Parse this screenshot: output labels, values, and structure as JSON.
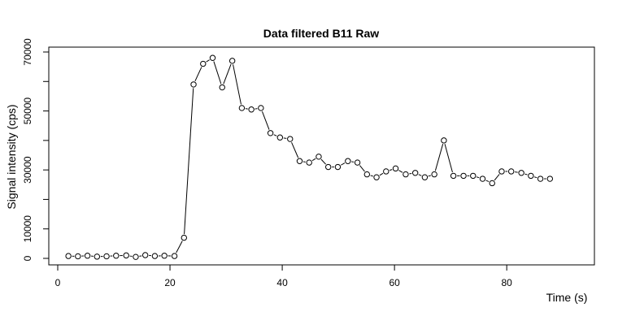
{
  "chart_data": {
    "type": "line",
    "title": "Data filtered B11 Raw",
    "xlabel": "Time (s)",
    "ylabel": "Signal intensity (cps)",
    "xlim": [
      0,
      92
    ],
    "ylim": [
      0,
      72000
    ],
    "x_ticks": [
      0,
      20,
      40,
      60,
      80
    ],
    "y_ticks": [
      0,
      10000,
      30000,
      50000,
      70000
    ],
    "y_minor_ticks": [
      20000,
      40000,
      60000
    ],
    "grid": false,
    "legend": "none",
    "series": [
      {
        "x": [
          1.9,
          3.6,
          5.3,
          7.0,
          8.7,
          10.4,
          12.2,
          13.9,
          15.6,
          17.3,
          19.0,
          20.8,
          22.5,
          24.2,
          25.9,
          27.6,
          29.3,
          31.1,
          32.8,
          34.5,
          36.2,
          37.9,
          39.6,
          41.4,
          43.1,
          44.8,
          46.5,
          48.2,
          49.9,
          51.7,
          53.4,
          55.1,
          56.8,
          58.5,
          60.2,
          62.0,
          63.7,
          65.4,
          67.1,
          68.8,
          70.5,
          72.3,
          74.0,
          75.7,
          77.4,
          79.1,
          80.8,
          82.6,
          84.3,
          86.0,
          87.7
        ],
        "values": [
          800,
          700,
          900,
          600,
          700,
          900,
          1000,
          500,
          1100,
          800,
          900,
          800,
          7000,
          59000,
          66000,
          68000,
          58000,
          67000,
          51000,
          50500,
          51000,
          42500,
          41000,
          40500,
          33000,
          32500,
          34500,
          31000,
          31000,
          33000,
          32500,
          28500,
          27500,
          29500,
          30500,
          28500,
          29000,
          27500,
          28500,
          40000,
          28000,
          28000,
          28000,
          27000,
          25500,
          29500,
          29500,
          29000,
          28000,
          27000,
          27000
        ]
      }
    ]
  }
}
